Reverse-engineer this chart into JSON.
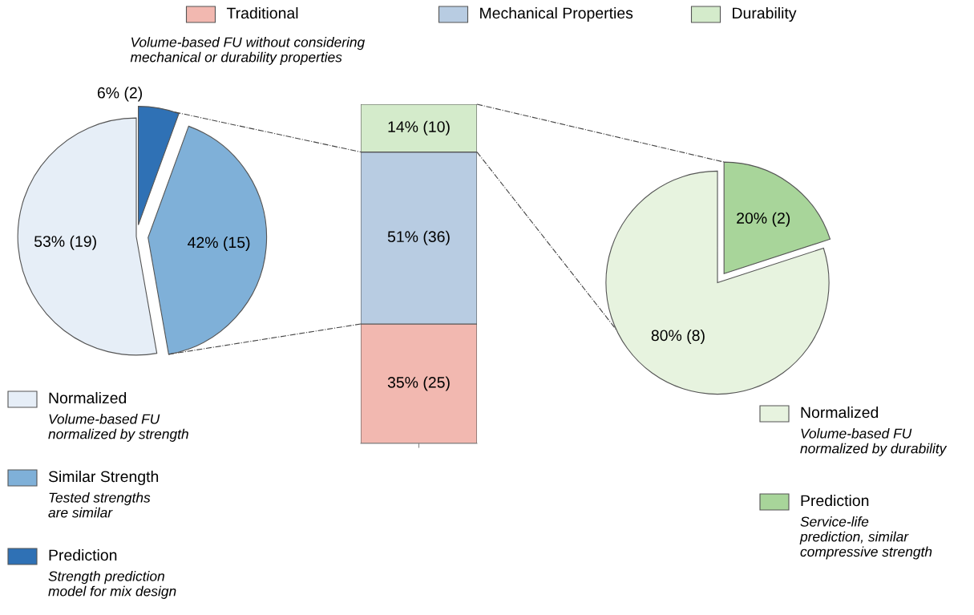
{
  "chart_data": [
    {
      "type": "pie",
      "categories": [
        "Normalized",
        "Similar Strength",
        "Prediction"
      ],
      "values": [
        19,
        15,
        2
      ],
      "value_labels": [
        "53% (19)",
        "42% (15)",
        "6% (2)"
      ],
      "colors": [
        "#e6eef7",
        "#7fb0d8",
        "#2f71b5"
      ],
      "legend": "bottom",
      "annotations": [
        "Volume-based FU\nnormalized by strength",
        "Tested strengths\nare similar",
        "Strength prediction\nmodel for mix design"
      ]
    },
    {
      "type": "bar",
      "stacked": true,
      "categories": [
        null
      ],
      "tick_labels": false,
      "legend": "top",
      "series": [
        {
          "name": "Traditional",
          "color": "#f2b8b0",
          "values": [
            25
          ],
          "value_labels": [
            "35% (25)"
          ]
        },
        {
          "name": "Mechanical Properties",
          "color": "#b8cce2",
          "values": [
            36
          ],
          "value_labels": [
            "51% (36)"
          ]
        },
        {
          "name": "Durability",
          "color": "#d4ebcb",
          "values": [
            10
          ],
          "value_labels": [
            "14% (10)"
          ]
        }
      ],
      "annotations": [
        "Volume-based FU without considering\nmechanical or durability properties"
      ]
    },
    {
      "type": "pie",
      "categories": [
        "Normalized",
        "Prediction"
      ],
      "values": [
        8,
        2
      ],
      "value_labels": [
        "80% (8)",
        "20% (2)"
      ],
      "colors": [
        "#e7f3df",
        "#a8d59a"
      ],
      "legend": "bottom",
      "annotations": [
        "Volume-based FU\nnormalized by durability",
        "Service-life\nprediction, similar\ncompressive strength"
      ]
    }
  ]
}
